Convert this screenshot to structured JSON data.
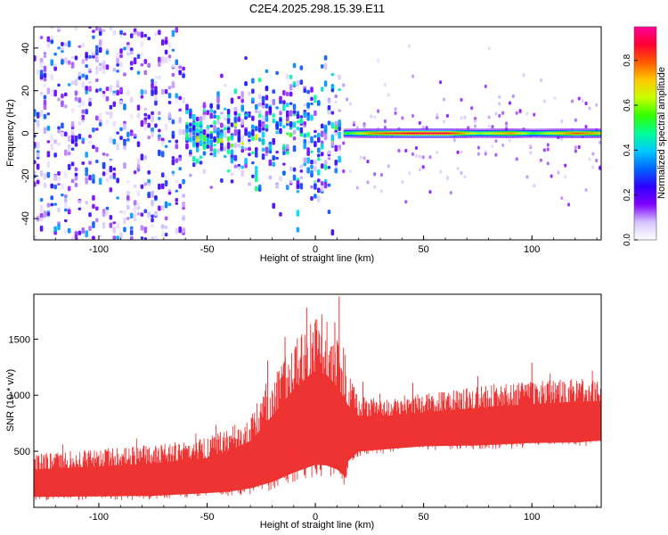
{
  "title": "C2E4.2025.298.15.39.E11",
  "chart_data": [
    {
      "type": "heatmap",
      "title": "C2E4.2025.298.15.39.E11",
      "xlabel": "Height of straight line (km)",
      "ylabel": "Frequency (Hz)",
      "xlim": [
        -130,
        132
      ],
      "ylim": [
        -50,
        50
      ],
      "xticks": [
        -100,
        -50,
        0,
        50,
        100
      ],
      "yticks": [
        -40,
        -20,
        0,
        20,
        40
      ],
      "colorbar": {
        "label": "Normalized spectral amplitude",
        "range": [
          0.0,
          0.95
        ],
        "ticks": [
          0.0,
          0.2,
          0.4,
          0.6,
          0.8
        ],
        "tick_labels": [
          "0.0",
          "0.2",
          "0.4",
          "0.6",
          "0.8"
        ],
        "colors": [
          "#ffffff",
          "#d4c4ff",
          "#8000ff",
          "#2e00ff",
          "#0066ff",
          "#00c8ff",
          "#00ff96",
          "#33ff00",
          "#c8ff00",
          "#ffc800",
          "#ff5a00",
          "#ff0033",
          "#ff0096"
        ]
      },
      "regions": [
        {
          "x_range": [
            -130,
            -60
          ],
          "freq_range": [
            -50,
            50
          ],
          "amplitude": 0.15,
          "description_level": "diffuse broadband noise"
        },
        {
          "x_range": [
            -60,
            12
          ],
          "freq_range": [
            -20,
            20
          ],
          "amplitude": 0.35,
          "description_level": "concentrated broadband"
        },
        {
          "x_range": [
            12,
            132
          ],
          "freq_range": [
            -2,
            2
          ],
          "amplitude": 0.85,
          "description_level": "narrow tone at 0 Hz"
        }
      ],
      "tone_peak_amplitude": [
        {
          "x": 15,
          "amplitude": 0.55
        },
        {
          "x": 25,
          "amplitude": 0.75
        },
        {
          "x": 40,
          "amplitude": 0.85
        },
        {
          "x": 50,
          "amplitude": 0.9
        },
        {
          "x": 60,
          "amplitude": 0.88
        },
        {
          "x": 75,
          "amplitude": 0.6
        },
        {
          "x": 90,
          "amplitude": 0.75
        },
        {
          "x": 100,
          "amplitude": 0.55
        },
        {
          "x": 120,
          "amplitude": 0.8
        },
        {
          "x": 132,
          "amplitude": 0.7
        }
      ]
    },
    {
      "type": "line",
      "xlabel": "Height of straight line (km)",
      "ylabel": "SNR (10 * v/v)",
      "xlim": [
        -130,
        132
      ],
      "ylim": [
        0,
        1900
      ],
      "xticks": [
        -100,
        -50,
        0,
        50,
        100
      ],
      "yticks": [
        500,
        1000,
        1500
      ],
      "series": [
        {
          "name": "SNR",
          "color": "#ee3333",
          "x": [
            -130,
            -100,
            -75,
            -50,
            -40,
            -30,
            -20,
            -10,
            0,
            5,
            10,
            14,
            15,
            20,
            30,
            50,
            75,
            100,
            120,
            132
          ],
          "upper": [
            480,
            520,
            560,
            620,
            720,
            830,
            1150,
            1480,
            1700,
            1650,
            1500,
            1350,
            1200,
            1000,
            980,
            1020,
            1080,
            1120,
            1150,
            1150
          ],
          "lower": [
            40,
            40,
            40,
            60,
            60,
            80,
            100,
            150,
            200,
            200,
            180,
            120,
            300,
            430,
            450,
            480,
            480,
            500,
            500,
            520
          ]
        }
      ]
    }
  ]
}
